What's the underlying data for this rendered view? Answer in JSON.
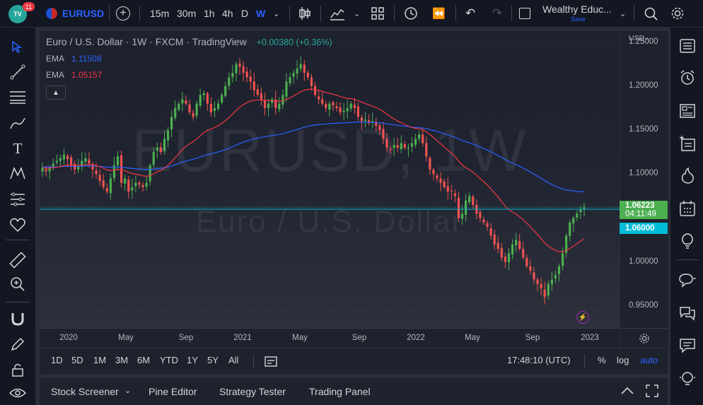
{
  "header": {
    "notification_count": "11",
    "symbol": "EURUSD",
    "intervals": [
      "15m",
      "30m",
      "1h",
      "4h",
      "D",
      "W"
    ],
    "active_interval": "W",
    "layout_name": "Wealthy Educ...",
    "layout_status": "Save"
  },
  "legend": {
    "title": "Euro / U.S. Dollar · 1W · FXCM · TradingView",
    "change": "+0.00380 (+0.36%)",
    "ema1_label": "EMA",
    "ema1_value": "1.11508",
    "ema2_label": "EMA",
    "ema2_value": "1.05157"
  },
  "watermark": {
    "symbol": "EURUSD, 1W",
    "description": "Euro / U.S. Dollar"
  },
  "price_axis": {
    "currency": "USD",
    "last_price": "1.06223",
    "countdown": "04:11:49",
    "line_price": "1.06000"
  },
  "bottom_toolbar": {
    "ranges": [
      "1D",
      "5D",
      "1M",
      "3M",
      "6M",
      "YTD",
      "1Y",
      "5Y",
      "All"
    ],
    "clock": "17:48:10 (UTC)",
    "percent": "%",
    "log": "log",
    "auto": "auto"
  },
  "panel_tabs": [
    "Stock Screener",
    "Pine Editor",
    "Strategy Tester",
    "Trading Panel"
  ],
  "colors": {
    "up": "#26a69a",
    "up_candle": "#4caf50",
    "down": "#ef5350",
    "ema_fast": "#f23645",
    "ema_slow": "#2962ff",
    "accent": "#2962ff",
    "price_tag": "#4caf50",
    "line_tag": "#00bcd4"
  },
  "chart_data": {
    "type": "candlestick",
    "title": "Euro / U.S. Dollar · 1W · FXCM · TradingView",
    "y_ticks": [
      "1.25000",
      "1.20000",
      "1.15000",
      "1.10000",
      "1.05000",
      "1.00000",
      "0.95000"
    ],
    "y_tick_values": [
      1.25,
      1.2,
      1.15,
      1.1,
      1.05,
      1.0,
      0.95
    ],
    "x_ticks": [
      "2020",
      "May",
      "Sep",
      "2021",
      "May",
      "Sep",
      "2022",
      "May",
      "Sep",
      "2023"
    ],
    "ylim": [
      0.925,
      1.29
    ],
    "x_range": [
      "2019-10",
      "2023-01"
    ],
    "weekly_close_approx": [
      1.107,
      1.103,
      1.108,
      1.112,
      1.115,
      1.118,
      1.122,
      1.117,
      1.11,
      1.105,
      1.11,
      1.115,
      1.118,
      1.112,
      1.105,
      1.1,
      1.092,
      1.085,
      1.08,
      1.095,
      1.11,
      1.12,
      1.09,
      1.095,
      1.08,
      1.085,
      1.09,
      1.088,
      1.085,
      1.09,
      1.11,
      1.125,
      1.13,
      1.125,
      1.14,
      1.15,
      1.165,
      1.175,
      1.18,
      1.185,
      1.18,
      1.17,
      1.165,
      1.18,
      1.19,
      1.192,
      1.18,
      1.17,
      1.175,
      1.18,
      1.19,
      1.2,
      1.21,
      1.215,
      1.225,
      1.222,
      1.215,
      1.21,
      1.205,
      1.195,
      1.19,
      1.185,
      1.175,
      1.18,
      1.185,
      1.175,
      1.18,
      1.19,
      1.205,
      1.21,
      1.215,
      1.22,
      1.225,
      1.215,
      1.21,
      1.2,
      1.19,
      1.185,
      1.18,
      1.175,
      1.18,
      1.178,
      1.175,
      1.17,
      1.172,
      1.175,
      1.18,
      1.175,
      1.165,
      1.16,
      1.162,
      1.158,
      1.16,
      1.155,
      1.15,
      1.14,
      1.13,
      1.128,
      1.133,
      1.13,
      1.135,
      1.13,
      1.13,
      1.135,
      1.14,
      1.145,
      1.135,
      1.12,
      1.105,
      1.1,
      1.095,
      1.09,
      1.085,
      1.08,
      1.08,
      1.075,
      1.05,
      1.055,
      1.07,
      1.075,
      1.065,
      1.055,
      1.05,
      1.045,
      1.04,
      1.03,
      1.02,
      1.015,
      1.005,
      1.0,
      1.01,
      1.02,
      1.025,
      1.015,
      1.005,
      0.995,
      0.99,
      0.98,
      0.975,
      0.97,
      0.96,
      0.975,
      0.98,
      0.985,
      0.995,
      1.01,
      1.03,
      1.045,
      1.05,
      1.055,
      1.06,
      1.062
    ],
    "ema_fast_value": 1.05157,
    "ema_slow_value": 1.11508,
    "last_price": 1.06223,
    "horizontal_line": 1.06
  }
}
